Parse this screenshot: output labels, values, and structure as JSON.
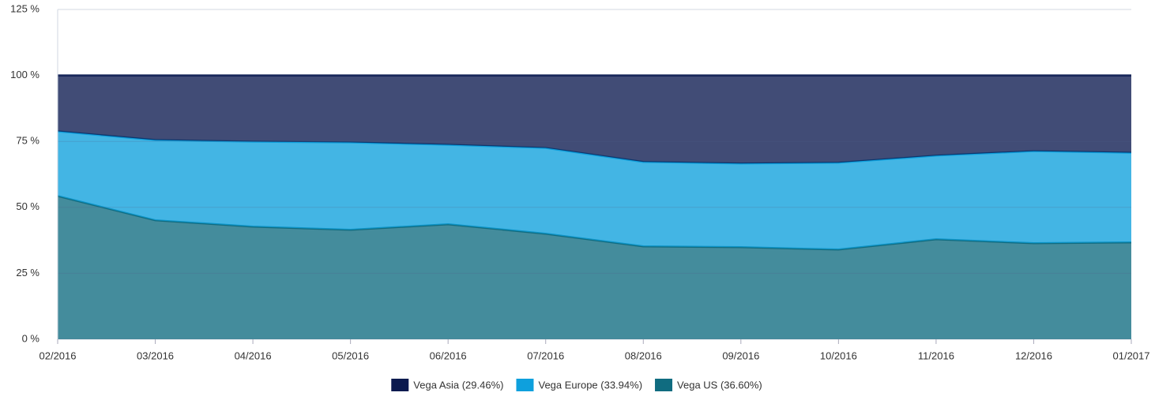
{
  "chart_data": {
    "type": "stacked_area",
    "categories": [
      "02/2016",
      "03/2016",
      "04/2016",
      "05/2016",
      "06/2016",
      "07/2016",
      "08/2016",
      "09/2016",
      "10/2016",
      "11/2016",
      "12/2016",
      "01/2017"
    ],
    "series": [
      {
        "name": "Vega Asia (29.46%)",
        "color": "#0b1a4f",
        "values": [
          21.2,
          24.5,
          25.1,
          25.4,
          26.3,
          27.5,
          32.8,
          33.4,
          33.1,
          30.4,
          28.7,
          29.3
        ]
      },
      {
        "name": "Vega Europe (33.94%)",
        "color": "#0ea0dd",
        "values": [
          24.5,
          30.4,
          32.2,
          33.1,
          30.1,
          32.5,
          32.0,
          31.7,
          32.9,
          31.7,
          34.9,
          34.0
        ]
      },
      {
        "name": "Vega US (36.60%)",
        "color": "#106c80",
        "values": [
          54.3,
          45.1,
          42.7,
          41.5,
          43.6,
          40.0,
          35.2,
          34.9,
          34.0,
          37.9,
          36.4,
          36.7
        ]
      }
    ],
    "ylim": [
      0,
      125
    ],
    "yticks": [
      {
        "value": 0,
        "label": "0 %"
      },
      {
        "value": 25,
        "label": "25 %"
      },
      {
        "value": 50,
        "label": "50 %"
      },
      {
        "value": 75,
        "label": "75 %"
      },
      {
        "value": 100,
        "label": "100 %"
      },
      {
        "value": 125,
        "label": "125 %"
      }
    ],
    "grid": true,
    "legend": "bottom"
  }
}
